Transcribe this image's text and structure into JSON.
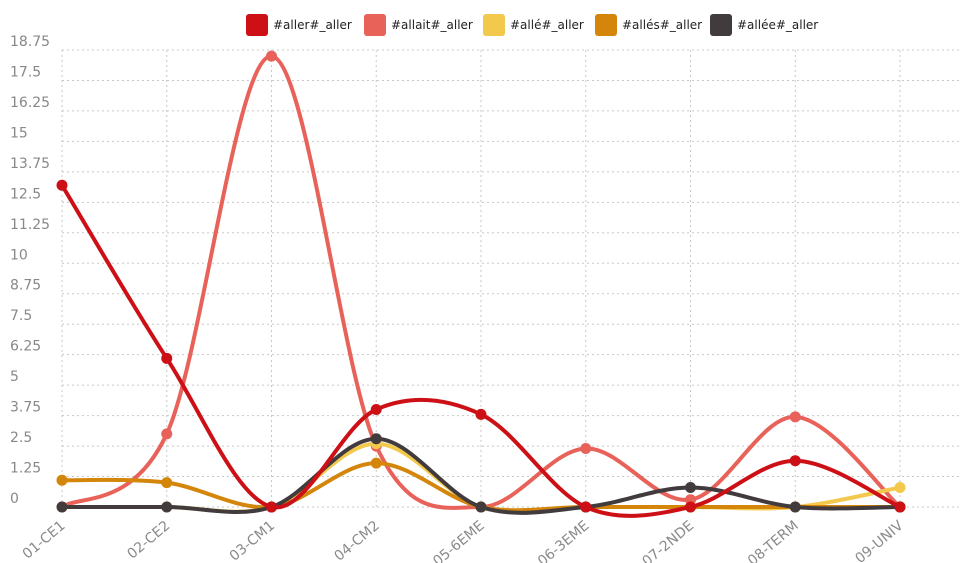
{
  "chart_data": {
    "type": "line",
    "title": "",
    "xlabel": "",
    "ylabel": "",
    "categories": [
      "01-CE1",
      "02-CE2",
      "03-CM1",
      "04-CM2",
      "05-6EME",
      "06-3EME",
      "07-2NDE",
      "08-TERM",
      "09-UNIV"
    ],
    "ylim": [
      0,
      18.75
    ],
    "yticks": [
      "0",
      "1.25",
      "2.5",
      "3.75",
      "5",
      "6.25",
      "7.5",
      "8.75",
      "10",
      "11.25",
      "12.5",
      "13.75",
      "15",
      "16.25",
      "17.5",
      "18.75"
    ],
    "grid": true,
    "smooth": true,
    "legend_position": "top-center",
    "series": [
      {
        "name": "#allait#_aller",
        "color": "#e8625a",
        "values": [
          0,
          3.0,
          18.5,
          2.5,
          0,
          2.4,
          0.3,
          3.7,
          0
        ]
      },
      {
        "name": "#allé#_aller",
        "color": "#f2c94c",
        "values": [
          0,
          0,
          0,
          2.6,
          0,
          0,
          0,
          0,
          0.8
        ]
      },
      {
        "name": "#allés#_aller",
        "color": "#d4860b",
        "values": [
          1.1,
          1.0,
          0,
          1.8,
          0,
          0,
          0,
          0,
          0
        ]
      },
      {
        "name": "#allée#_aller",
        "color": "#423b3d",
        "values": [
          0,
          0,
          0,
          2.8,
          0,
          0,
          0.8,
          0,
          0
        ]
      },
      {
        "name": "#aller#_aller",
        "color": "#cc1016",
        "values": [
          13.2,
          6.1,
          0,
          4.0,
          3.8,
          0,
          0,
          1.9,
          0
        ]
      }
    ],
    "legend_order": [
      "#aller#_aller",
      "#allait#_aller",
      "#allé#_aller",
      "#allés#_aller",
      "#allée#_aller"
    ]
  }
}
